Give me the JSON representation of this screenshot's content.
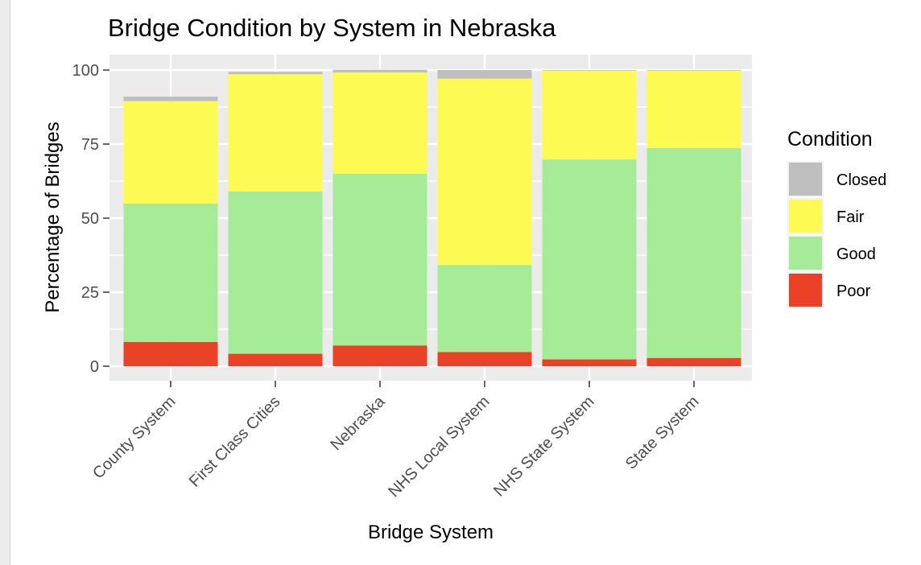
{
  "chart_data": {
    "type": "bar",
    "stacked": true,
    "title": "Bridge Condition by System in Nebraska",
    "xlabel": "Bridge System",
    "ylabel": "Percentage of Bridges",
    "ylim": [
      0,
      100
    ],
    "yticks": [
      0,
      25,
      50,
      75,
      100
    ],
    "grid": true,
    "categories": [
      "County System",
      "First Class Cities",
      "Nebraska",
      "NHS Local System",
      "NHS State System",
      "State System"
    ],
    "series": [
      {
        "name": "Poor",
        "color": "#e94227",
        "values": [
          8.2,
          4.2,
          7.0,
          4.8,
          2.3,
          2.8
        ]
      },
      {
        "name": "Good",
        "color": "#a6eb98",
        "values": [
          46.7,
          54.8,
          58.0,
          29.4,
          67.5,
          70.9
        ]
      },
      {
        "name": "Fair",
        "color": "#fdfb53",
        "values": [
          34.6,
          39.6,
          34.2,
          62.9,
          30.0,
          26.1
        ]
      },
      {
        "name": "Closed",
        "color": "#bebebe",
        "values": [
          1.5,
          0.8,
          0.9,
          2.9,
          0.2,
          0.2
        ]
      }
    ],
    "legend": {
      "title": "Condition",
      "position": "right",
      "items": [
        {
          "label": "Closed",
          "color": "#bebebe"
        },
        {
          "label": "Fair",
          "color": "#fdfb53"
        },
        {
          "label": "Good",
          "color": "#a6eb98"
        },
        {
          "label": "Poor",
          "color": "#e94227"
        }
      ]
    }
  }
}
